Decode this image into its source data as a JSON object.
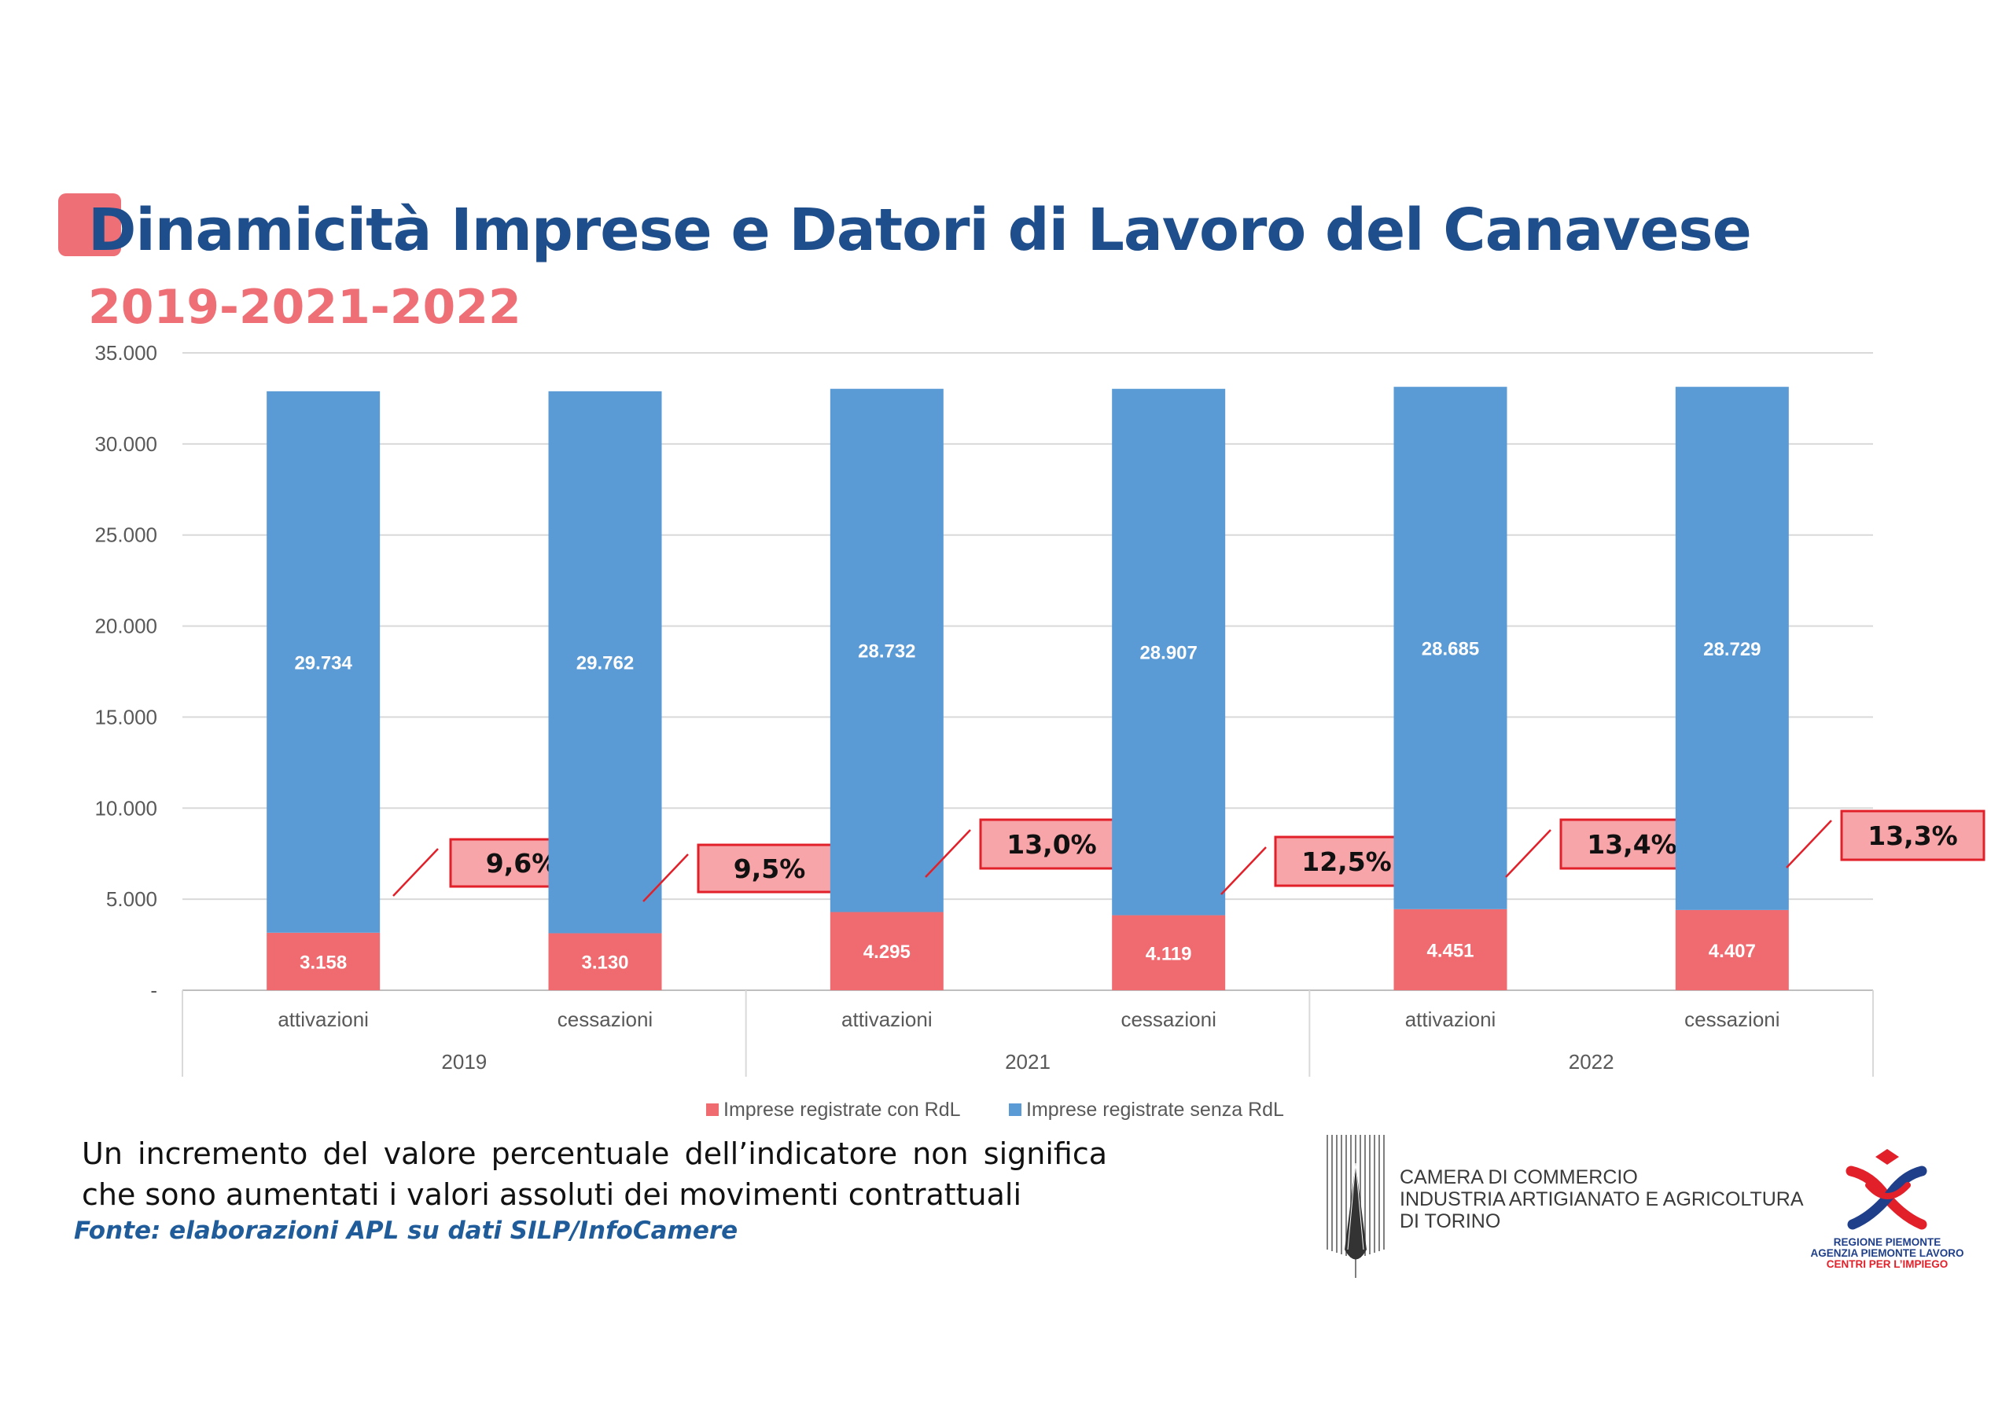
{
  "header": {
    "title": "Dinamicità Imprese e Datori di Lavoro del Canavese",
    "subtitle": "2019-2021-2022"
  },
  "chart_data": {
    "type": "bar",
    "stacked": true,
    "groups": [
      "2019",
      "2021",
      "2022"
    ],
    "categories": [
      "attivazioni",
      "cessazioni",
      "attivazioni",
      "cessazioni",
      "attivazioni",
      "cessazioni"
    ],
    "category_groups": [
      "2019",
      "2019",
      "2021",
      "2021",
      "2022",
      "2022"
    ],
    "series": [
      {
        "name": "Imprese registrate con RdL",
        "color": "#ef6b70",
        "values": [
          3158,
          3130,
          4295,
          4119,
          4451,
          4407
        ]
      },
      {
        "name": "Imprese registrate senza RdL",
        "color": "#5b9bd5",
        "values": [
          29734,
          29762,
          28732,
          28907,
          28685,
          28729
        ]
      }
    ],
    "value_labels": {
      "Imprese registrate con RdL": [
        "3.158",
        "3.130",
        "4.295",
        "4.119",
        "4.451",
        "4.407"
      ],
      "Imprese registrate senza RdL": [
        "29.734",
        "29.762",
        "28.732",
        "28.907",
        "28.685",
        "28.729"
      ]
    },
    "percent_callouts": [
      "9,6%",
      "9,5%",
      "13,0%",
      "12,5%",
      "13,4%",
      "13,3%"
    ],
    "ylim": [
      0,
      35000
    ],
    "yticks": [
      0,
      5000,
      10000,
      15000,
      20000,
      25000,
      30000,
      35000
    ],
    "ytick_labels": [
      "-",
      "5.000",
      "10.000",
      "15.000",
      "20.000",
      "25.000",
      "30.000",
      "35.000"
    ],
    "grid": true,
    "legend": "bottom"
  },
  "note": "Un incremento del valore percentuale dell’indicatore non significa che sono aumentati i valori assoluti dei movimenti contrattuali",
  "source": "Fonte: elaborazioni APL su dati SILP/InfoCamere",
  "logos": {
    "camera_commercio": [
      "CAMERA DI COMMERCIO",
      "INDUSTRIA ARTIGIANATO E AGRICOLTURA",
      "DI TORINO"
    ],
    "regione_piemonte": [
      "REGIONE PIEMONTE",
      "AGENZIA PIEMONTE LAVORO",
      "CENTRI PER L’IMPIEGO"
    ]
  }
}
